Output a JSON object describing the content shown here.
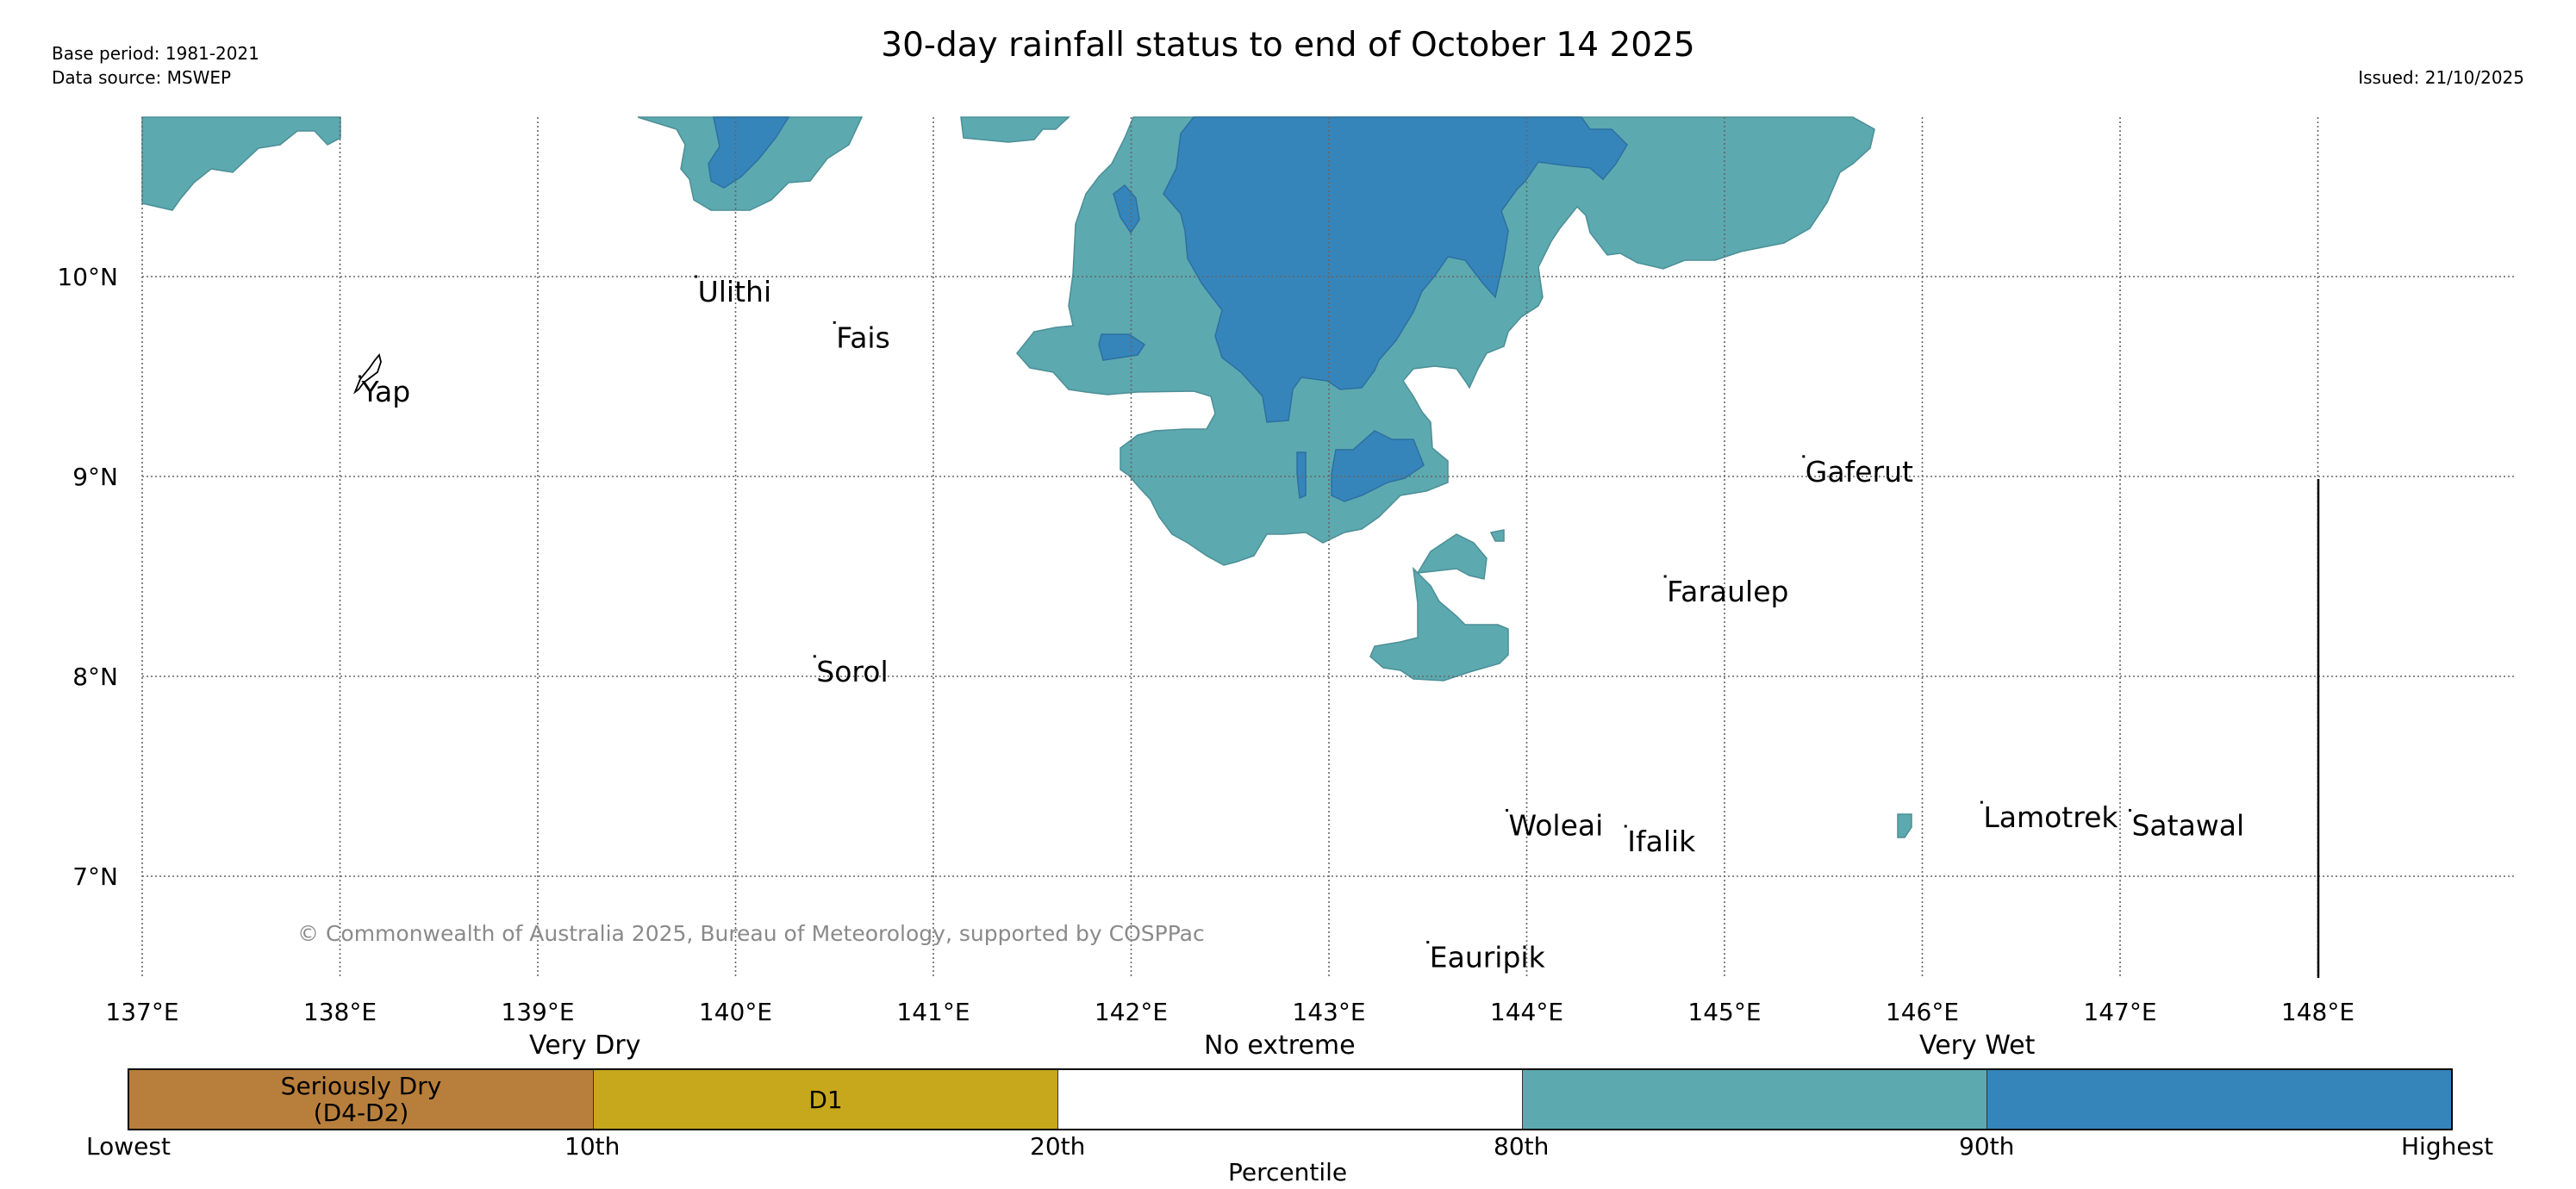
{
  "header": {
    "title": "30-day rainfall status to end of October 14 2025",
    "base_period": "Base period: 1981-2021",
    "data_source": "Data source: MSWEP",
    "issued": "Issued: 21/10/2025"
  },
  "map": {
    "lon_labels": [
      "137°E",
      "138°E",
      "139°E",
      "140°E",
      "141°E",
      "142°E",
      "143°E",
      "144°E",
      "145°E",
      "146°E",
      "147°E",
      "148°E"
    ],
    "lat_labels": [
      "10°N",
      "9°N",
      "8°N",
      "7°N"
    ],
    "places": [
      {
        "name": "Yap",
        "lon": 138.1,
        "lat": 9.5
      },
      {
        "name": "Ulithi",
        "lon": 139.8,
        "lat": 10.0
      },
      {
        "name": "Fais",
        "lon": 140.5,
        "lat": 9.77
      },
      {
        "name": "Gaferut",
        "lon": 145.4,
        "lat": 9.1
      },
      {
        "name": "Faraulep",
        "lon": 144.7,
        "lat": 8.5
      },
      {
        "name": "Sorol",
        "lon": 140.4,
        "lat": 8.1
      },
      {
        "name": "Woleai",
        "lon": 143.9,
        "lat": 7.33
      },
      {
        "name": "Ifalik",
        "lon": 144.5,
        "lat": 7.25
      },
      {
        "name": "Lamotrek",
        "lon": 146.3,
        "lat": 7.37
      },
      {
        "name": "Satawal",
        "lon": 147.05,
        "lat": 7.33
      },
      {
        "name": "Eauripik",
        "lon": 143.5,
        "lat": 6.67
      }
    ],
    "copyright": "© Commonwealth of Australia 2025, Bureau of Meteorology, supported by COSPPac",
    "colors": {
      "very_wet": "#5ca9b0",
      "highest": "#3585bb",
      "seriously_dry": "#b87f3c",
      "d1": "#c7a71c",
      "no_extreme": "#ffffff"
    }
  },
  "colorbar": {
    "category_labels": [
      "Very Dry",
      "No extreme",
      "Very Wet"
    ],
    "segments": [
      {
        "label": "Seriously Dry\n(D4-D2)",
        "color": "#b87f3c"
      },
      {
        "label": "D1",
        "color": "#c7a71c"
      },
      {
        "label": "",
        "color": "#ffffff"
      },
      {
        "label": "",
        "color": "#5ca9b0"
      },
      {
        "label": "",
        "color": "#3585bb"
      }
    ],
    "tick_labels": [
      "Lowest",
      "10th",
      "20th",
      "80th",
      "90th",
      "Highest"
    ],
    "axis_label": "Percentile"
  }
}
